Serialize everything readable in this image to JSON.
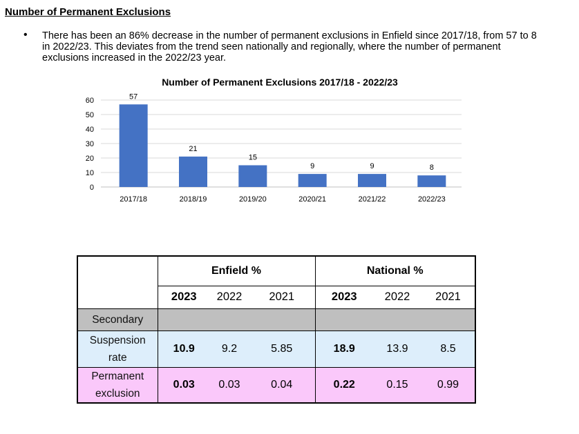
{
  "heading": "Number of Permanent Exclusions",
  "bullet": "There has been an 86% decrease in the number of permanent exclusions in Enfield since 2017/18, from 57 to 8 in 2022/23. This deviates from the trend seen nationally and regionally, where the number of permanent exclusions increased in the 2022/23 year.",
  "bullet_symbol": "•",
  "chart_data": {
    "type": "bar",
    "title": "Number of Permanent Exclusions 2017/18 - 2022/23",
    "categories": [
      "2017/18",
      "2018/19",
      "2019/20",
      "2020/21",
      "2021/22",
      "2022/23"
    ],
    "values": [
      57,
      21,
      15,
      9,
      9,
      8
    ],
    "yticks": [
      0,
      10,
      20,
      30,
      40,
      50,
      60
    ],
    "ylim": [
      0,
      60
    ],
    "bar_color": "#4472c4",
    "grid": true,
    "legend": "none"
  },
  "table": {
    "groups": [
      "Enfield %",
      "National %"
    ],
    "years": [
      "2023",
      "2022",
      "2021"
    ],
    "rows": [
      {
        "label_lines": [
          "Secondary"
        ],
        "values": [
          "",
          "",
          "",
          "",
          "",
          ""
        ],
        "bg": "#bfbfbf"
      },
      {
        "label_lines": [
          "Suspension",
          "rate"
        ],
        "values": [
          "10.9",
          "9.2",
          "5.85",
          "18.9",
          "13.9",
          "8.5"
        ],
        "bg": "#ddeefb"
      },
      {
        "label_lines": [
          "Permanent",
          "exclusion"
        ],
        "values": [
          "0.03",
          "0.03",
          "0.04",
          "0.22",
          "0.15",
          "0.99"
        ],
        "bg": "#fac8fa"
      }
    ]
  }
}
